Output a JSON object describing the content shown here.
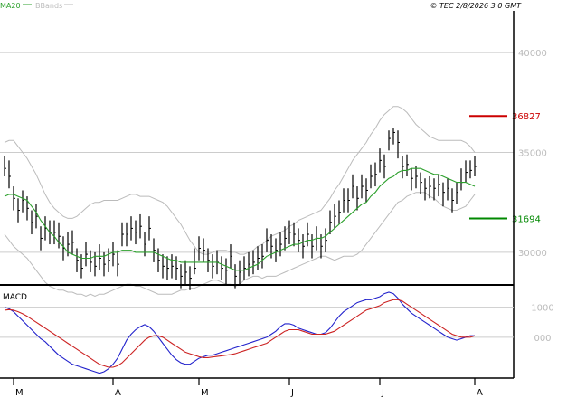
{
  "header": {
    "legend": [
      {
        "label": "MA20",
        "color": "#2ca02c"
      },
      {
        "label": "BBands",
        "color": "#bbbbbb"
      }
    ],
    "copyright": "© TEC 2/8/2026 3:0 GMT"
  },
  "chart_data": [
    {
      "type": "ohlc",
      "ylim": [
        28500,
        42000
      ],
      "yticks": [
        {
          "label": "40000",
          "value": 40000
        },
        {
          "label": "35000",
          "value": 35000
        },
        {
          "label": "30000",
          "value": 30000
        }
      ],
      "grid": true,
      "xticks": [
        {
          "label": "M",
          "index": 2
        },
        {
          "label": "A",
          "index": 24
        },
        {
          "label": "M",
          "index": 43
        },
        {
          "label": "J",
          "index": 63
        },
        {
          "label": "J",
          "index": 83
        },
        {
          "label": "A",
          "index": 104
        }
      ],
      "close": [
        34200,
        33800,
        32700,
        32100,
        32600,
        32200,
        31500,
        31800,
        30700,
        31200,
        31000,
        31000,
        30800,
        30200,
        30400,
        30500,
        29600,
        29200,
        29900,
        29500,
        29300,
        29700,
        29400,
        29600,
        29900,
        29400,
        30900,
        30900,
        31200,
        31000,
        31300,
        30400,
        31200,
        30100,
        29600,
        29300,
        29200,
        29300,
        29200,
        28800,
        29000,
        28700,
        29200,
        30200,
        30100,
        29600,
        29300,
        29500,
        29200,
        29100,
        29800,
        28800,
        29000,
        29200,
        29400,
        29500,
        29700,
        29800,
        30600,
        30300,
        30100,
        30400,
        30700,
        31000,
        30900,
        30600,
        30300,
        30900,
        30300,
        30700,
        30300,
        30600,
        31500,
        31800,
        32000,
        32600,
        32600,
        33300,
        32700,
        33300,
        33100,
        33800,
        33900,
        34600,
        34300,
        35700,
        36000,
        35500,
        34300,
        34400,
        33700,
        33800,
        33500,
        33200,
        33300,
        33200,
        33400,
        33000,
        33200,
        32600,
        33000,
        33500,
        34000,
        34100,
        34300
      ],
      "high": [
        34800,
        34600,
        33300,
        32700,
        33100,
        32800,
        32100,
        32400,
        31300,
        31800,
        31600,
        31600,
        31500,
        30800,
        31000,
        31100,
        30200,
        29900,
        30500,
        30100,
        30000,
        30400,
        30000,
        30200,
        30500,
        30100,
        31500,
        31500,
        31800,
        31600,
        31900,
        31000,
        31800,
        30700,
        30200,
        29900,
        29800,
        29900,
        29800,
        29400,
        29600,
        29300,
        30200,
        30800,
        30700,
        30200,
        29900,
        30100,
        29800,
        29700,
        30400,
        29400,
        29600,
        29800,
        30000,
        30100,
        30300,
        30400,
        31200,
        30900,
        30700,
        31000,
        31300,
        31600,
        31500,
        31200,
        30900,
        31500,
        30900,
        31300,
        30900,
        31200,
        32100,
        32400,
        32600,
        33200,
        33200,
        33900,
        33300,
        33900,
        33700,
        34400,
        34500,
        35200,
        34900,
        36100,
        36200,
        36100,
        34800,
        34900,
        34200,
        34300,
        34000,
        33700,
        33800,
        33700,
        33900,
        33500,
        33700,
        33200,
        33500,
        34200,
        34600,
        34600,
        34800
      ],
      "low": [
        33800,
        33200,
        32100,
        31500,
        32000,
        31600,
        30900,
        31200,
        30100,
        30600,
        30400,
        30400,
        30200,
        29600,
        29800,
        29900,
        29000,
        28700,
        29300,
        29000,
        28800,
        29100,
        28800,
        29000,
        29300,
        28800,
        30300,
        30300,
        30600,
        30400,
        30700,
        29800,
        30600,
        29500,
        29000,
        28700,
        28600,
        28700,
        28600,
        28200,
        28400,
        28100,
        28900,
        29600,
        29500,
        29000,
        28700,
        28900,
        28600,
        28400,
        29200,
        28200,
        28400,
        28600,
        28800,
        28900,
        29100,
        29200,
        30000,
        29700,
        29500,
        29800,
        30100,
        30400,
        30300,
        30000,
        29700,
        30300,
        29700,
        30100,
        29700,
        30000,
        30900,
        31200,
        31400,
        32000,
        32000,
        32700,
        32100,
        32700,
        32500,
        33200,
        33300,
        34000,
        33700,
        35100,
        35400,
        34700,
        33700,
        33800,
        33100,
        33200,
        32900,
        32600,
        32700,
        32600,
        32800,
        32300,
        32600,
        32000,
        32400,
        33100,
        33500,
        33700,
        33800
      ],
      "series": [
        {
          "name": "MA20",
          "color": "#2ca02c",
          "values": [
            32800,
            32900,
            32900,
            32800,
            32700,
            32600,
            32300,
            32000,
            31600,
            31300,
            31000,
            30800,
            30500,
            30300,
            30000,
            29900,
            29800,
            29700,
            29700,
            29700,
            29800,
            29800,
            29800,
            29900,
            30000,
            30000,
            30100,
            30100,
            30100,
            30000,
            30000,
            30000,
            30000,
            30000,
            29900,
            29800,
            29700,
            29600,
            29600,
            29500,
            29500,
            29500,
            29500,
            29500,
            29500,
            29500,
            29500,
            29500,
            29400,
            29300,
            29200,
            29100,
            29100,
            29100,
            29200,
            29300,
            29400,
            29600,
            29800,
            29900,
            30000,
            30100,
            30200,
            30300,
            30400,
            30400,
            30500,
            30600,
            30600,
            30700,
            30700,
            30800,
            31000,
            31200,
            31400,
            31600,
            31800,
            32000,
            32200,
            32400,
            32500,
            32800,
            33000,
            33300,
            33500,
            33700,
            33800,
            34000,
            34100,
            34100,
            34200,
            34200,
            34200,
            34100,
            34000,
            33900,
            33900,
            33800,
            33700,
            33600,
            33500,
            33500,
            33500,
            33400,
            33300
          ]
        },
        {
          "name": "Upper",
          "color": "#bbbbbb",
          "values": [
            35500,
            35600,
            35600,
            35300,
            35000,
            34700,
            34300,
            33900,
            33400,
            32900,
            32500,
            32200,
            32000,
            31800,
            31700,
            31700,
            31800,
            32000,
            32200,
            32400,
            32500,
            32500,
            32600,
            32600,
            32600,
            32600,
            32700,
            32800,
            32900,
            32900,
            32800,
            32800,
            32800,
            32700,
            32600,
            32500,
            32300,
            32000,
            31700,
            31400,
            31000,
            30600,
            30300,
            30000,
            29900,
            29900,
            30000,
            30100,
            30100,
            30100,
            30000,
            30000,
            29900,
            29900,
            30000,
            30100,
            30300,
            30400,
            30600,
            30800,
            30900,
            31000,
            31100,
            31300,
            31400,
            31600,
            31700,
            31800,
            31900,
            32000,
            32100,
            32400,
            32700,
            33100,
            33400,
            33800,
            34200,
            34600,
            34900,
            35200,
            35500,
            35900,
            36200,
            36600,
            36900,
            37100,
            37300,
            37300,
            37200,
            37000,
            36700,
            36400,
            36200,
            36000,
            35800,
            35700,
            35600,
            35600,
            35600,
            35600,
            35600,
            35600,
            35500,
            35300,
            35000
          ]
        },
        {
          "name": "Lower",
          "color": "#bbbbbb",
          "values": [
            30900,
            30600,
            30300,
            30100,
            29900,
            29700,
            29400,
            29100,
            28800,
            28500,
            28300,
            28200,
            28100,
            28100,
            28000,
            28000,
            27900,
            27900,
            27800,
            27900,
            27800,
            27900,
            27900,
            28000,
            28100,
            28200,
            28300,
            28400,
            28400,
            28300,
            28300,
            28200,
            28100,
            28000,
            27900,
            27900,
            27900,
            27900,
            28000,
            28100,
            28100,
            28200,
            28200,
            28300,
            28400,
            28500,
            28600,
            28600,
            28500,
            28400,
            28400,
            28300,
            28400,
            28600,
            28700,
            28800,
            28800,
            28700,
            28800,
            28800,
            28800,
            28900,
            29000,
            29100,
            29200,
            29300,
            29400,
            29500,
            29600,
            29700,
            29800,
            29800,
            29700,
            29600,
            29700,
            29800,
            29800,
            29800,
            29900,
            30100,
            30400,
            30700,
            31000,
            31300,
            31600,
            31900,
            32200,
            32500,
            32600,
            32800,
            32900,
            33000,
            33000,
            33000,
            32800,
            32700,
            32500,
            32300,
            32200,
            32100,
            32100,
            32200,
            32300,
            32600,
            32900
          ]
        }
      ],
      "annotations": [
        {
          "label": "36827",
          "value": 36827,
          "color": "#cc0000"
        },
        {
          "label": "31694",
          "value": 31694,
          "color": "#008800"
        }
      ]
    },
    {
      "type": "line",
      "title": "MACD",
      "ylim": [
        -1300,
        1650
      ],
      "yticks": [
        {
          "label": "1000",
          "value": 1000
        },
        {
          "label": "000",
          "value": 0
        }
      ],
      "grid": true,
      "series": [
        {
          "name": "MACD",
          "color": "#2222cc",
          "values": [
            1000,
            950,
            850,
            700,
            550,
            400,
            250,
            100,
            -50,
            -150,
            -300,
            -450,
            -600,
            -700,
            -800,
            -900,
            -950,
            -1000,
            -1050,
            -1100,
            -1150,
            -1200,
            -1150,
            -1050,
            -900,
            -700,
            -400,
            -100,
            100,
            250,
            350,
            420,
            350,
            200,
            0,
            -200,
            -400,
            -600,
            -750,
            -850,
            -900,
            -900,
            -800,
            -700,
            -650,
            -600,
            -600,
            -550,
            -500,
            -450,
            -400,
            -350,
            -300,
            -250,
            -200,
            -150,
            -100,
            -50,
            0,
            100,
            200,
            350,
            450,
            450,
            400,
            300,
            250,
            200,
            150,
            100,
            100,
            150,
            300,
            500,
            700,
            850,
            950,
            1050,
            1150,
            1200,
            1250,
            1250,
            1300,
            1350,
            1450,
            1500,
            1450,
            1300,
            1100,
            950,
            800,
            700,
            600,
            500,
            400,
            300,
            200,
            100,
            0,
            -50,
            -100,
            -50,
            0,
            50,
            50
          ]
        },
        {
          "name": "Signal",
          "color": "#cc2222",
          "values": [
            900,
            920,
            900,
            850,
            780,
            700,
            600,
            500,
            400,
            300,
            200,
            100,
            0,
            -100,
            -200,
            -300,
            -400,
            -500,
            -600,
            -700,
            -800,
            -900,
            -950,
            -1000,
            -1000,
            -950,
            -850,
            -700,
            -550,
            -400,
            -250,
            -100,
            0,
            50,
            50,
            0,
            -100,
            -200,
            -300,
            -400,
            -500,
            -550,
            -600,
            -650,
            -680,
            -680,
            -660,
            -640,
            -620,
            -600,
            -580,
            -550,
            -500,
            -450,
            -400,
            -350,
            -300,
            -250,
            -200,
            -100,
            0,
            100,
            200,
            250,
            250,
            250,
            200,
            150,
            100,
            100,
            100,
            100,
            150,
            200,
            300,
            400,
            500,
            600,
            700,
            800,
            900,
            950,
            1000,
            1050,
            1150,
            1200,
            1250,
            1250,
            1200,
            1100,
            1000,
            900,
            800,
            700,
            600,
            500,
            400,
            300,
            200,
            100,
            50,
            0,
            0,
            0,
            50
          ]
        }
      ]
    }
  ]
}
